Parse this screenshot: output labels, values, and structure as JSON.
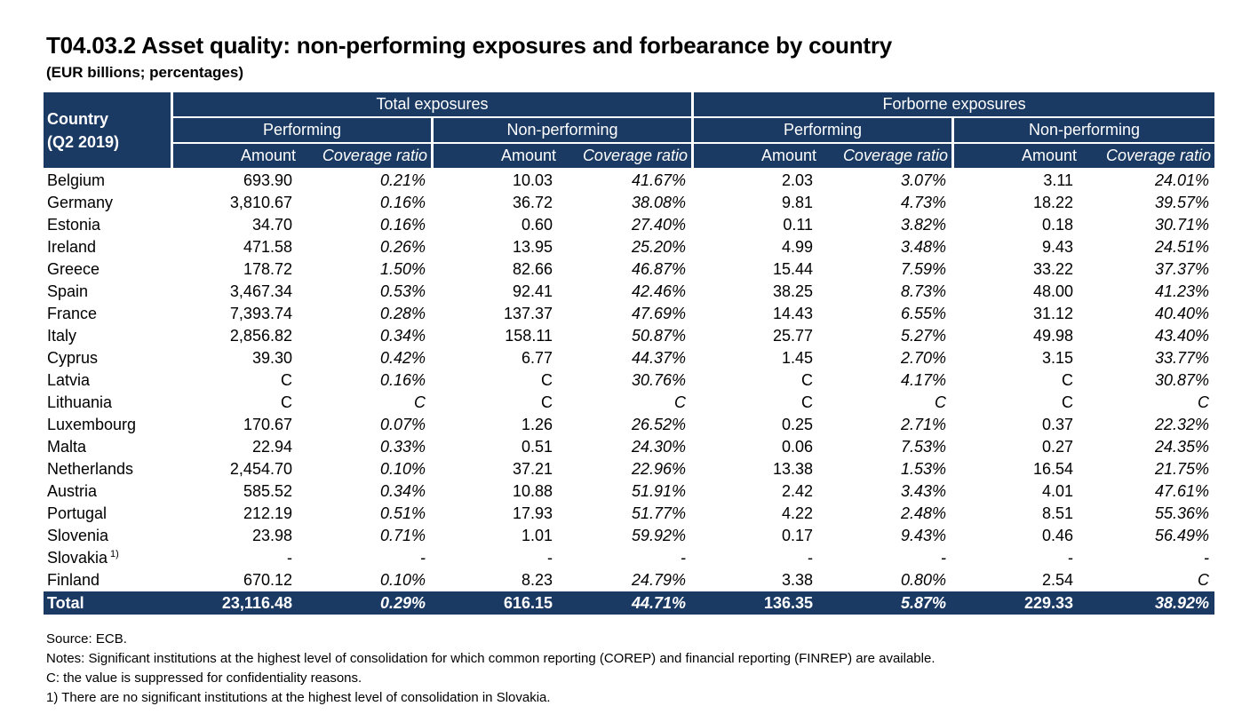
{
  "title": "T04.03.2 Asset quality: non-performing exposures and forbearance by country",
  "subtitle": "(EUR billions; percentages)",
  "header": {
    "country_line1": "Country",
    "country_line2": "(Q2 2019)",
    "groups": [
      "Total exposures",
      "Forborne exposures"
    ],
    "subgroups": [
      "Performing",
      "Non-performing",
      "Performing",
      "Non-performing"
    ],
    "amount_label": "Amount",
    "coverage_label": "Coverage ratio"
  },
  "rows": [
    {
      "country": "Belgium",
      "cells": [
        "693.90",
        "0.21%",
        "10.03",
        "41.67%",
        "2.03",
        "3.07%",
        "3.11",
        "24.01%"
      ]
    },
    {
      "country": "Germany",
      "cells": [
        "3,810.67",
        "0.16%",
        "36.72",
        "38.08%",
        "9.81",
        "4.73%",
        "18.22",
        "39.57%"
      ]
    },
    {
      "country": "Estonia",
      "cells": [
        "34.70",
        "0.16%",
        "0.60",
        "27.40%",
        "0.11",
        "3.82%",
        "0.18",
        "30.71%"
      ]
    },
    {
      "country": "Ireland",
      "cells": [
        "471.58",
        "0.26%",
        "13.95",
        "25.20%",
        "4.99",
        "3.48%",
        "9.43",
        "24.51%"
      ]
    },
    {
      "country": "Greece",
      "cells": [
        "178.72",
        "1.50%",
        "82.66",
        "46.87%",
        "15.44",
        "7.59%",
        "33.22",
        "37.37%"
      ]
    },
    {
      "country": "Spain",
      "cells": [
        "3,467.34",
        "0.53%",
        "92.41",
        "42.46%",
        "38.25",
        "8.73%",
        "48.00",
        "41.23%"
      ]
    },
    {
      "country": "France",
      "cells": [
        "7,393.74",
        "0.28%",
        "137.37",
        "47.69%",
        "14.43",
        "6.55%",
        "31.12",
        "40.40%"
      ]
    },
    {
      "country": "Italy",
      "cells": [
        "2,856.82",
        "0.34%",
        "158.11",
        "50.87%",
        "25.77",
        "5.27%",
        "49.98",
        "43.40%"
      ]
    },
    {
      "country": "Cyprus",
      "cells": [
        "39.30",
        "0.42%",
        "6.77",
        "44.37%",
        "1.45",
        "2.70%",
        "3.15",
        "33.77%"
      ]
    },
    {
      "country": "Latvia",
      "cells": [
        "C",
        "0.16%",
        "C",
        "30.76%",
        "C",
        "4.17%",
        "C",
        "30.87%"
      ]
    },
    {
      "country": "Lithuania",
      "cells": [
        "C",
        "C",
        "C",
        "C",
        "C",
        "C",
        "C",
        "C"
      ]
    },
    {
      "country": "Luxembourg",
      "cells": [
        "170.67",
        "0.07%",
        "1.26",
        "26.52%",
        "0.25",
        "2.71%",
        "0.37",
        "22.32%"
      ]
    },
    {
      "country": "Malta",
      "cells": [
        "22.94",
        "0.33%",
        "0.51",
        "24.30%",
        "0.06",
        "7.53%",
        "0.27",
        "24.35%"
      ]
    },
    {
      "country": "Netherlands",
      "cells": [
        "2,454.70",
        "0.10%",
        "37.21",
        "22.96%",
        "13.38",
        "1.53%",
        "16.54",
        "21.75%"
      ]
    },
    {
      "country": "Austria",
      "cells": [
        "585.52",
        "0.34%",
        "10.88",
        "51.91%",
        "2.42",
        "3.43%",
        "4.01",
        "47.61%"
      ]
    },
    {
      "country": "Portugal",
      "cells": [
        "212.19",
        "0.51%",
        "17.93",
        "51.77%",
        "4.22",
        "2.48%",
        "8.51",
        "55.36%"
      ]
    },
    {
      "country": "Slovenia",
      "cells": [
        "23.98",
        "0.71%",
        "1.01",
        "59.92%",
        "0.17",
        "9.43%",
        "0.46",
        "56.49%"
      ]
    },
    {
      "country": "Slovakia",
      "footnote": "1)",
      "cells": [
        "-",
        "-",
        "-",
        "-",
        "-",
        "-",
        "-",
        "-"
      ]
    },
    {
      "country": "Finland",
      "cells": [
        "670.12",
        "0.10%",
        "8.23",
        "24.79%",
        "3.38",
        "0.80%",
        "2.54",
        "C"
      ]
    }
  ],
  "total": {
    "label": "Total",
    "cells": [
      "23,116.48",
      "0.29%",
      "616.15",
      "44.71%",
      "136.35",
      "5.87%",
      "229.33",
      "38.92%"
    ]
  },
  "notes": {
    "source": "Source: ECB.",
    "notes": "Notes: Significant institutions at the highest level of consolidation for which common reporting (COREP) and financial reporting (FINREP) are available.",
    "confidential": "C: the value is suppressed for confidentiality reasons.",
    "footnote1": "1) There are no significant institutions at the highest level of consolidation in Slovakia."
  }
}
